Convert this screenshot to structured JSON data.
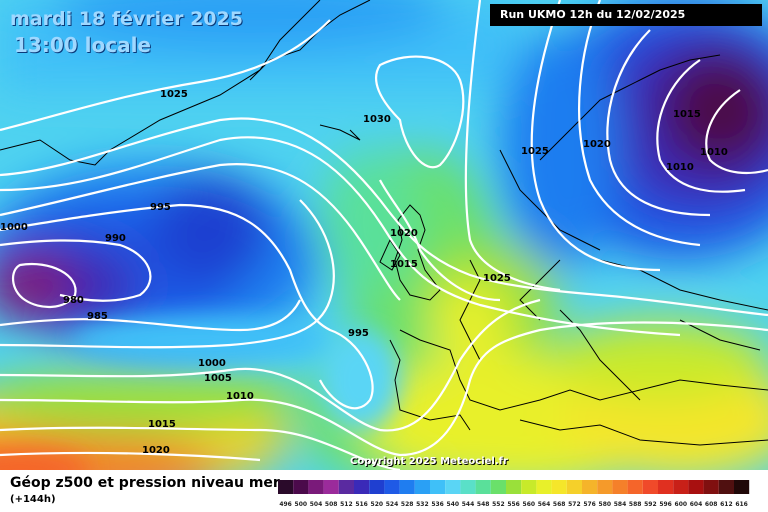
{
  "header": {
    "date": "mardi 18 février 2025",
    "time": "13:00 locale",
    "run": "Run UKMO 12h du 12/02/2025"
  },
  "footer": {
    "title": "Géop z500 et pression niveau mer",
    "subtitle": "(+144h)",
    "copyright": "Copyright 2025 Meteociel.fr"
  },
  "isobars": [
    {
      "label": "1025"
    },
    {
      "label": "1030"
    },
    {
      "label": "995"
    },
    {
      "label": "990"
    },
    {
      "label": "1000"
    },
    {
      "label": "980"
    },
    {
      "label": "985"
    },
    {
      "label": "995"
    },
    {
      "label": "1020"
    },
    {
      "label": "1015"
    },
    {
      "label": "1025"
    },
    {
      "label": "1025"
    },
    {
      "label": "1020"
    },
    {
      "label": "1015"
    },
    {
      "label": "1010"
    },
    {
      "label": "1010"
    },
    {
      "label": "1000"
    },
    {
      "label": "1005"
    },
    {
      "label": "1010"
    },
    {
      "label": "1015"
    },
    {
      "label": "1020"
    }
  ],
  "scale": {
    "values": [
      "496",
      "500",
      "504",
      "508",
      "512",
      "516",
      "520",
      "524",
      "528",
      "532",
      "536",
      "540",
      "544",
      "548",
      "552",
      "556",
      "560",
      "564",
      "568",
      "572",
      "576",
      "580",
      "584",
      "588",
      "592",
      "596",
      "600",
      "604",
      "608",
      "612",
      "616"
    ],
    "colors": [
      "#2a0a2a",
      "#4b0a4b",
      "#7a1a7a",
      "#9b2b9b",
      "#5a2aa0",
      "#3a2ab8",
      "#1f3fd0",
      "#1f5ae6",
      "#1f7df0",
      "#2aa0f5",
      "#3fc0f8",
      "#5ad5f5",
      "#5ae0c8",
      "#5ae09a",
      "#6ae06a",
      "#9ae03a",
      "#c8ea2a",
      "#e8f02a",
      "#f5e62a",
      "#f5d02a",
      "#f5b42a",
      "#f59a2a",
      "#f5802a",
      "#f5652a",
      "#f04a2a",
      "#e03020",
      "#c82018",
      "#a81010",
      "#801010",
      "#501010",
      "#200808"
    ]
  }
}
